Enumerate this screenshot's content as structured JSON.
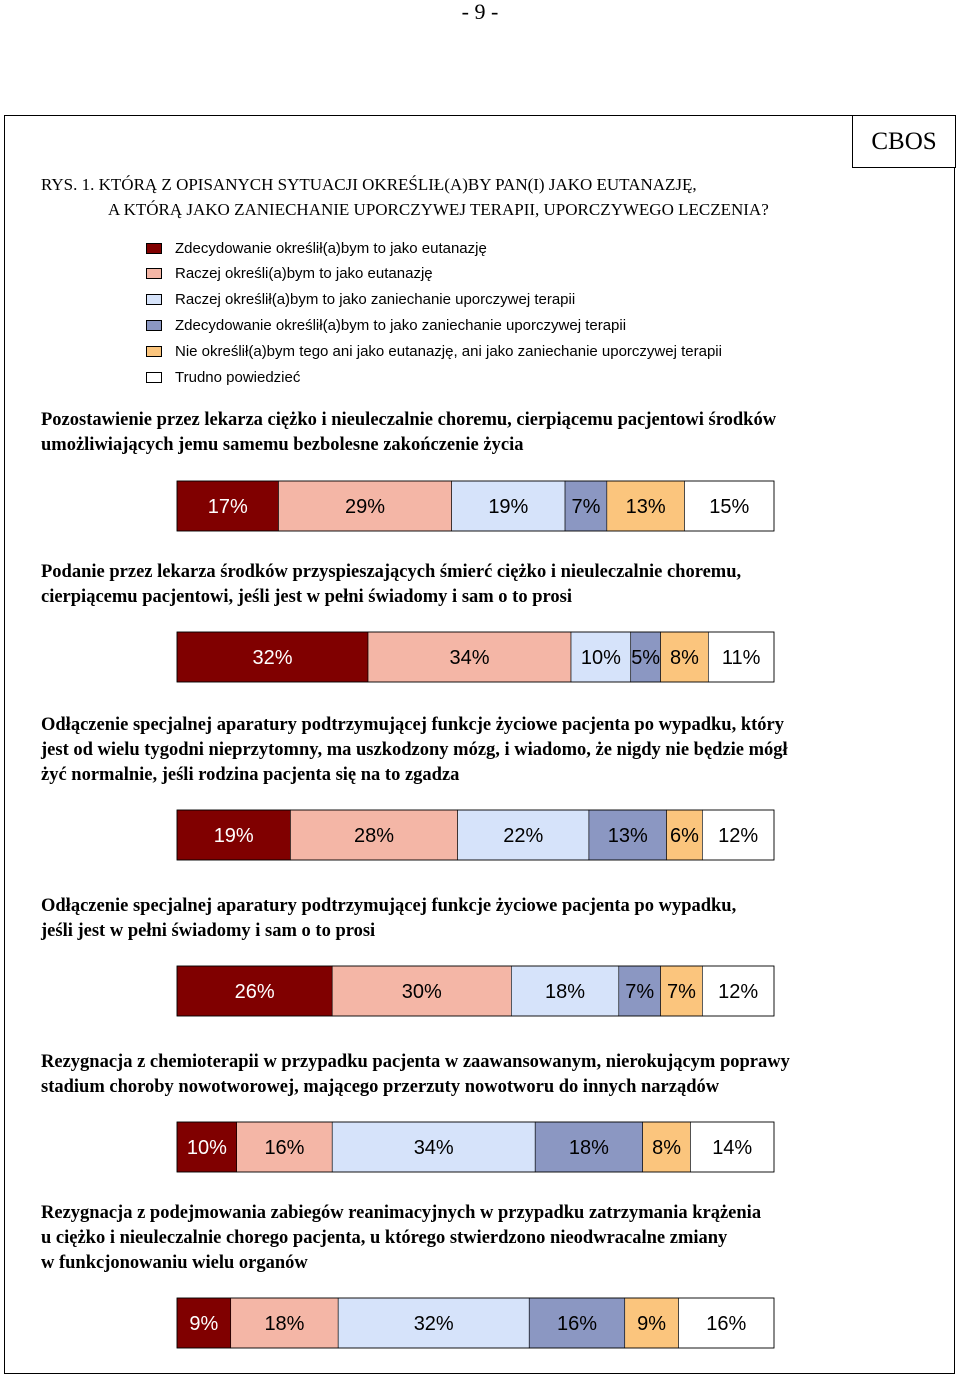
{
  "page_number": "- 9 -",
  "publisher": "CBOS",
  "figure": {
    "title_line1": "RYS. 1. KTÓRĄ Z OPISANYCH SYTUACJI OKREŚLIŁ(A)BY PAN(I) JAKO EUTANAZJĘ,",
    "title_line2": "A KTÓRĄ JAKO ZANIECHANIE UPORCZYWEJ TERAPII, UPORCZYWEGO LECZENIA?"
  },
  "legend": [
    {
      "label": "Zdecydowanie określił(a)bym to jako eutanazję",
      "color": "#800000"
    },
    {
      "label": "Raczej określi(a)bym to jako eutanazję",
      "color": "#f4b6a6"
    },
    {
      "label": "Raczej określił(a)bym to jako zaniechanie uporczywej terapii",
      "color": "#d6e3fa"
    },
    {
      "label": "Zdecydowanie określił(a)bym to jako zaniechanie uporczywej terapii",
      "color": "#8b97c2"
    },
    {
      "label": "Nie określił(a)bym tego ani jako eutanazję, ani jako zaniechanie uporczywej terapii",
      "color": "#fbc57d"
    },
    {
      "label": "Trudno powiedzieć",
      "color": "#ffffff"
    }
  ],
  "chart_data": {
    "type": "bar",
    "orientation": "horizontal-stacked-100",
    "series": [
      {
        "name": "Zdecydowanie określił(a)bym to jako eutanazję",
        "values": [
          17,
          32,
          19,
          26,
          10,
          9
        ]
      },
      {
        "name": "Raczej określi(a)bym to jako eutanazję",
        "values": [
          29,
          34,
          28,
          30,
          16,
          18
        ]
      },
      {
        "name": "Raczej określił(a)bym to jako zaniechanie uporczywej terapii",
        "values": [
          19,
          10,
          22,
          18,
          34,
          32
        ]
      },
      {
        "name": "Zdecydowanie określił(a)bym to jako zaniechanie uporczywej terapii",
        "values": [
          7,
          5,
          13,
          7,
          18,
          16
        ]
      },
      {
        "name": "Nie określił(a)bym tego ani jako eutanazję, ani jako zaniechanie uporczywej terapii",
        "values": [
          13,
          8,
          6,
          7,
          8,
          9
        ]
      },
      {
        "name": "Trudno powiedzieć",
        "values": [
          15,
          11,
          12,
          12,
          14,
          16
        ]
      }
    ],
    "items": [
      {
        "question": [
          "Pozostawienie przez lekarza ciężko i nieuleczalnie choremu, cierpiącemu pacjentowi środków",
          "umożliwiających jemu samemu bezbolesne zakończenie życia"
        ],
        "values": [
          17,
          29,
          19,
          7,
          13,
          15
        ]
      },
      {
        "question": [
          "Podanie przez lekarza środków przyspieszających śmierć ciężko i nieuleczalnie choremu,",
          "cierpiącemu  pacjentowi, jeśli jest w pełni świadomy i sam o to prosi"
        ],
        "values": [
          32,
          34,
          10,
          5,
          8,
          11
        ]
      },
      {
        "question": [
          "Odłączenie specjalnej aparatury podtrzymującej funkcje życiowe pacjenta  po wypadku, który",
          "jest od wielu tygodni nieprzytomny, ma uszkodzony  mózg, i wiadomo, że nigdy nie będzie mógł",
          "żyć normalnie,  jeśli rodzina pacjenta się na to zgadza"
        ],
        "values": [
          19,
          28,
          22,
          13,
          6,
          12
        ]
      },
      {
        "question": [
          "Odłączenie specjalnej aparatury podtrzymującej funkcje życiowe pacjenta po wypadku,",
          "jeśli jest  w pełni świadomy i sam o to prosi"
        ],
        "values": [
          26,
          30,
          18,
          7,
          7,
          12
        ]
      },
      {
        "question": [
          "Rezygnacja z chemioterapii w przypadku  pacjenta w zaawansowanym, nierokującym poprawy",
          "stadium choroby nowotworowej, mającego przerzuty nowotworu do innych narządów"
        ],
        "values": [
          10,
          16,
          34,
          18,
          8,
          14
        ]
      },
      {
        "question": [
          "Rezygnacja z podejmowania zabiegów reanimacyjnych w przypadku zatrzymania krążenia",
          "u  ciężko i nieuleczalnie chorego pacjenta, u którego stwierdzono nieodwracalne zmiany",
          "w funkcjonowaniu wielu organów"
        ],
        "values": [
          9,
          18,
          32,
          16,
          9,
          16
        ]
      }
    ],
    "label_suffix": "%",
    "label_colors": [
      "#ffffff",
      "#000000",
      "#000000",
      "#000000",
      "#000000",
      "#000000"
    ]
  }
}
